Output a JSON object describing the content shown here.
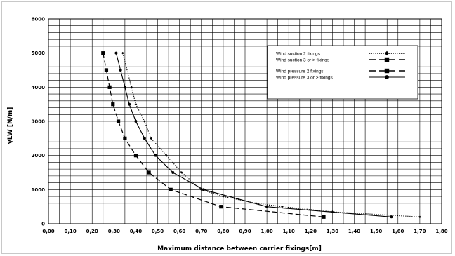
{
  "chart_data": {
    "type": "line",
    "title": "",
    "xlabel": "Maximum distance between carrier fixings[m]",
    "ylabel": "γLW [N/m]",
    "xlim": [
      0,
      1.8
    ],
    "ylim": [
      0,
      6000
    ],
    "x_ticks": [
      "0,00",
      "0,10",
      "0,20",
      "0,30",
      "0,40",
      "0,50",
      "0,60",
      "0,70",
      "0,80",
      "0,90",
      "1,00",
      "1,10",
      "1,20",
      "1,30",
      "1,40",
      "1,50",
      "1,60",
      "1,70",
      "1,80"
    ],
    "y_ticks": [
      "0",
      "1000",
      "2000",
      "3000",
      "4000",
      "5000",
      "6000"
    ],
    "grid": true,
    "legend_position": "top-right",
    "series": [
      {
        "name": "Wind suction 2 fixings",
        "line": "dotted",
        "marker": "diamond",
        "points": [
          [
            0.34,
            5000
          ],
          [
            0.38,
            4000
          ],
          [
            0.4,
            3500
          ],
          [
            0.44,
            3000
          ],
          [
            0.47,
            2500
          ],
          [
            0.54,
            2000
          ],
          [
            0.61,
            1500
          ],
          [
            0.7,
            1000
          ],
          [
            0.8,
            800
          ],
          [
            0.95,
            600
          ],
          [
            1.07,
            500
          ],
          [
            1.3,
            350
          ],
          [
            1.7,
            200
          ]
        ]
      },
      {
        "name": "Wind suction 3 or > fixings",
        "line": "dashed",
        "marker": "square",
        "points": [
          [
            0.25,
            5000
          ],
          [
            0.265,
            4500
          ],
          [
            0.28,
            4000
          ],
          [
            0.295,
            3500
          ],
          [
            0.32,
            3000
          ],
          [
            0.35,
            2500
          ],
          [
            0.4,
            2000
          ],
          [
            0.46,
            1500
          ],
          [
            0.56,
            1000
          ],
          [
            0.79,
            500
          ],
          [
            1.26,
            200
          ]
        ]
      },
      {
        "name": "Wind pressure 2 fixings",
        "line": "dashed",
        "marker": "square",
        "points": []
      },
      {
        "name": "Wind pressure 3 or > fixings",
        "line": "solid",
        "marker": "circle",
        "points": [
          [
            0.31,
            5000
          ],
          [
            0.33,
            4500
          ],
          [
            0.35,
            4000
          ],
          [
            0.37,
            3500
          ],
          [
            0.4,
            3000
          ],
          [
            0.44,
            2500
          ],
          [
            0.49,
            2000
          ],
          [
            0.57,
            1500
          ],
          [
            0.71,
            1000
          ],
          [
            1.0,
            500
          ],
          [
            1.57,
            200
          ]
        ]
      }
    ]
  }
}
